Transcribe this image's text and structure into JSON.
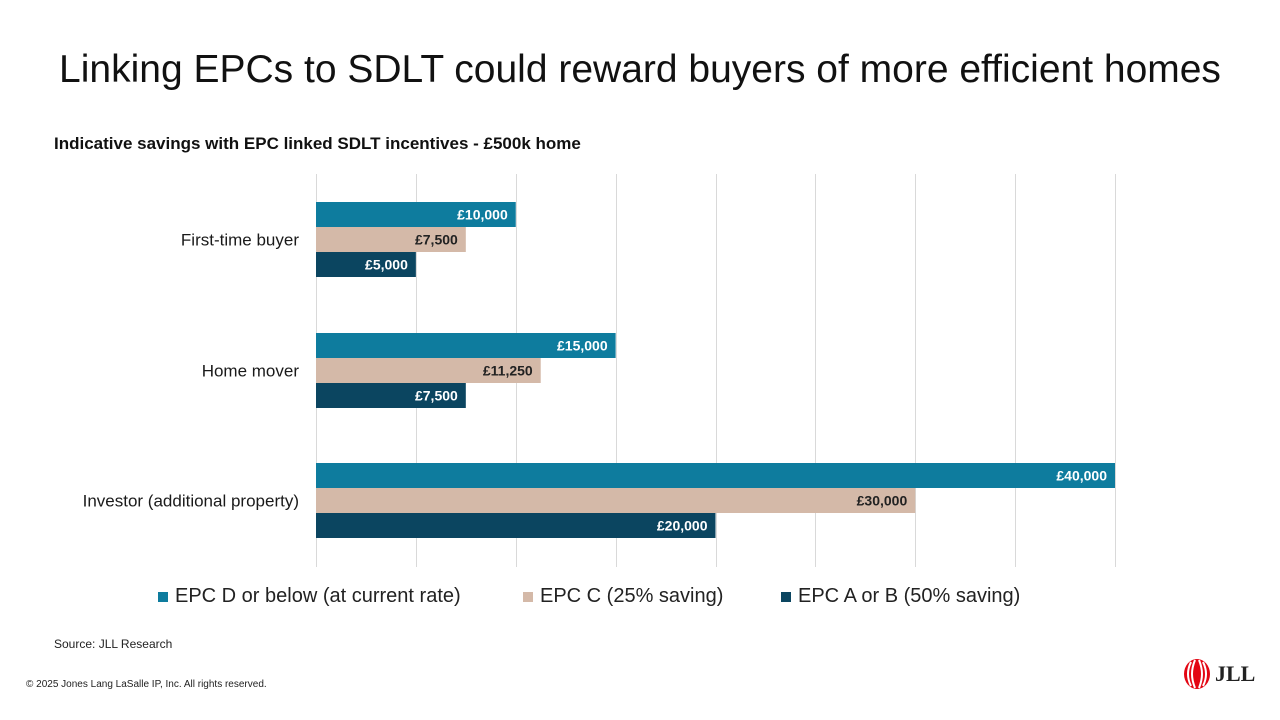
{
  "title": "Linking EPCs to SDLT could reward buyers of more efficient homes",
  "subtitle": "Indicative savings with EPC linked SDLT incentives - £500k home",
  "source": "Source: JLL Research",
  "copyright": "© 2025 Jones Lang LaSalle IP, Inc. All rights reserved.",
  "logo": {
    "text": "JLL",
    "icon": "jll-logo-icon",
    "color": "#e30613"
  },
  "chart_data": {
    "type": "bar",
    "orientation": "horizontal",
    "title": "Indicative savings with EPC linked SDLT incentives - £500k home",
    "categories": [
      "First-time buyer",
      "Home mover",
      "Investor (additional property)"
    ],
    "series": [
      {
        "name": "EPC D or below (at current rate)",
        "color": "#0e7c9e",
        "label_color": "#ffffff",
        "values": [
          10000,
          15000,
          40000
        ],
        "labels": [
          "£10,000",
          "£15,000",
          "£40,000"
        ]
      },
      {
        "name": "EPC C (25% saving)",
        "color": "#d4b9a8",
        "label_color": "#222222",
        "values": [
          7500,
          11250,
          30000
        ],
        "labels": [
          "£7,500",
          "£11,250",
          "£30,000"
        ]
      },
      {
        "name": "EPC A or B (50% saving)",
        "color": "#0b4560",
        "label_color": "#ffffff",
        "values": [
          5000,
          7500,
          20000
        ],
        "labels": [
          "£5,000",
          "£7,500",
          "£20,000"
        ]
      }
    ],
    "xlim": [
      0,
      40000
    ],
    "grid_step": 5000,
    "grid": true,
    "legend_position": "bottom"
  }
}
